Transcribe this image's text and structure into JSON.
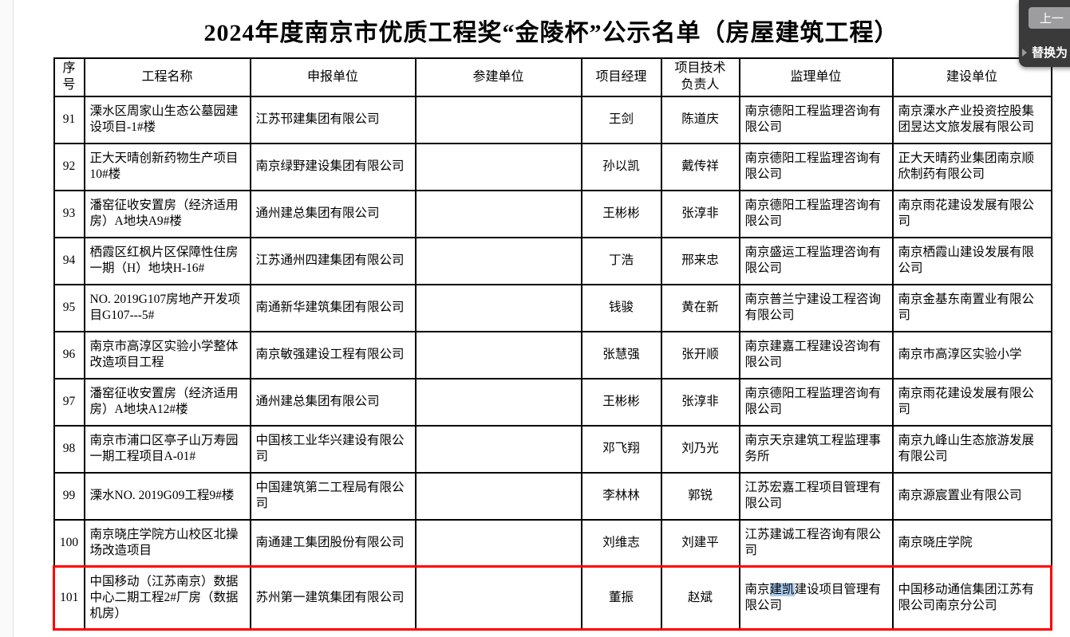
{
  "page": {
    "title": "2024年度南京市优质工程奖“金陵杯”公示名单（房屋建筑工程）"
  },
  "find_replace_panel": {
    "previous_button": "上一",
    "replace_toggle": "替换为"
  },
  "table": {
    "headers": [
      "序号",
      "工程名称",
      "申报单位",
      "参建单位",
      "项目经理",
      "项目技术负责人",
      "监理单位",
      "建设单位"
    ],
    "rows": [
      {
        "no": "91",
        "project": "溧水区周家山生态公墓园建设项目-1#楼",
        "applicant": "江苏邗建集团有限公司",
        "participants": "",
        "manager": "王剑",
        "tech_lead": "陈道庆",
        "supervisor": "南京德阳工程监理咨询有限公司",
        "builder": "南京溧水产业投资控股集团昱达文旅发展有限公司"
      },
      {
        "no": "92",
        "project": "正大天晴创新药物生产项目10#楼",
        "applicant": "南京绿野建设集团有限公司",
        "participants": "",
        "manager": "孙以凯",
        "tech_lead": "戴传祥",
        "supervisor": "南京德阳工程监理咨询有限公司",
        "builder": "正大天晴药业集团南京顺欣制药有限公司"
      },
      {
        "no": "93",
        "project": "潘窑征收安置房（经济适用房）A地块A9#楼",
        "applicant": "通州建总集团有限公司",
        "participants": "",
        "manager": "王彬彬",
        "tech_lead": "张淳非",
        "supervisor": "南京德阳工程监理咨询有限公司",
        "builder": "南京雨花建设发展有限公司"
      },
      {
        "no": "94",
        "project": "栖霞区红枫片区保障性住房一期（H）地块H-16#",
        "applicant": "江苏通州四建集团有限公司",
        "participants": "",
        "manager": "丁浩",
        "tech_lead": "邢来忠",
        "supervisor": "南京盛运工程监理咨询有限公司",
        "builder": "南京栖霞山建设发展有限公司"
      },
      {
        "no": "95",
        "project": "NO. 2019G107房地产开发项目G107---5#",
        "applicant": "南通新华建筑集团有限公司",
        "participants": "",
        "manager": "钱骏",
        "tech_lead": "黄在新",
        "supervisor": "南京普兰宁建设工程咨询有限公司",
        "builder": "南京金基东南置业有限公司"
      },
      {
        "no": "96",
        "project": "南京市高淳区实验小学整体改造项目工程",
        "applicant": "南京敏强建设工程有限公司",
        "participants": "",
        "manager": "张慧强",
        "tech_lead": "张开顺",
        "supervisor": "南京建嘉工程建设咨询有限公司",
        "builder": "南京市高淳区实验小学"
      },
      {
        "no": "97",
        "project": "潘窑征收安置房（经济适用房）A地块A12#楼",
        "applicant": "通州建总集团有限公司",
        "participants": "",
        "manager": "王彬彬",
        "tech_lead": "张淳非",
        "supervisor": "南京德阳工程监理咨询有限公司",
        "builder": "南京雨花建设发展有限公司"
      },
      {
        "no": "98",
        "project": "南京市浦口区亭子山万寿园一期工程项目A-01#",
        "applicant": "中国核工业华兴建设有限公司",
        "participants": "",
        "manager": "邓飞翔",
        "tech_lead": "刘乃光",
        "supervisor": "南京天京建筑工程监理事务所",
        "builder": "南京九峰山生态旅游发展有限公司"
      },
      {
        "no": "99",
        "project": "溧水NO. 2019G09工程9#楼",
        "applicant": "中国建筑第二工程局有限公司",
        "participants": "",
        "manager": "李林林",
        "tech_lead": "郭锐",
        "supervisor": "江苏宏嘉工程项目管理有限公司",
        "builder": "南京源宸置业有限公司"
      },
      {
        "no": "100",
        "project": "南京晓庄学院方山校区北操场改造项目",
        "applicant": "南通建工集团股份有限公司",
        "participants": "",
        "manager": "刘维志",
        "tech_lead": "刘建平",
        "supervisor": "江苏建诚工程咨询有限公司",
        "builder": "南京晓庄学院"
      },
      {
        "no": "101",
        "project": "中国移动（江苏南京）数据中心二期工程2#厂房（数据机房）",
        "applicant": "苏州第一建筑集团有限公司",
        "participants": "",
        "manager": "董振",
        "tech_lead": "赵斌",
        "supervisor": "南京建凯建设项目管理有限公司",
        "builder": "中国移动通信集团江苏有限公司南京分公司"
      }
    ],
    "highlight": {
      "row_no": "101",
      "border_color": "#ff0000"
    },
    "selection": {
      "row_no": "101",
      "field": "supervisor",
      "text": "建凯",
      "color": "#a9cbee"
    }
  }
}
